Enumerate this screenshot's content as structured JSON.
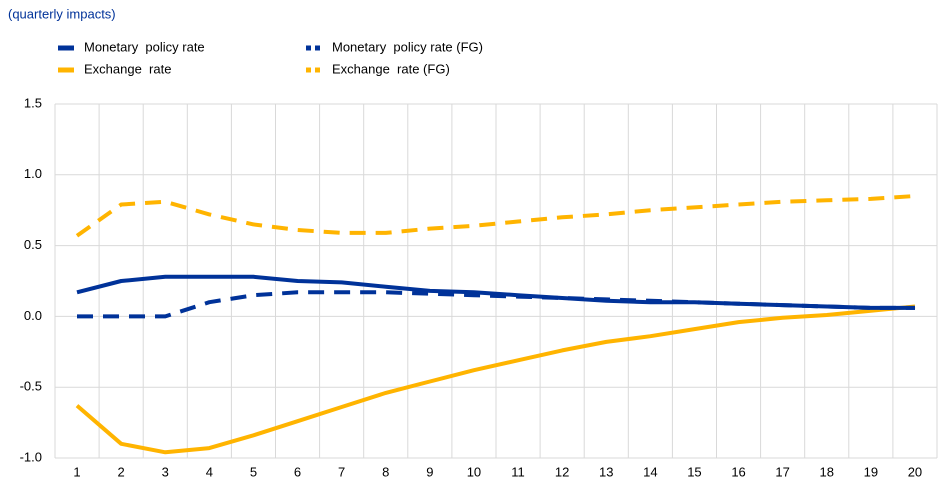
{
  "chart_data": {
    "type": "line",
    "subtitle": "(quarterly impacts)",
    "categories": [
      "1",
      "2",
      "3",
      "4",
      "5",
      "6",
      "7",
      "8",
      "9",
      "10",
      "11",
      "12",
      "13",
      "14",
      "15",
      "16",
      "17",
      "18",
      "19",
      "20"
    ],
    "series": [
      {
        "name": "Monetary  policy rate",
        "color": "#003299",
        "dashed": false,
        "values": [
          0.17,
          0.25,
          0.28,
          0.28,
          0.28,
          0.25,
          0.24,
          0.21,
          0.18,
          0.17,
          0.15,
          0.13,
          0.11,
          0.1,
          0.1,
          0.09,
          0.08,
          0.07,
          0.06,
          0.06
        ]
      },
      {
        "name": "Monetary  policy rate (FG)",
        "color": "#003299",
        "dashed": true,
        "values": [
          0,
          0,
          0,
          0.1,
          0.15,
          0.17,
          0.17,
          0.17,
          0.16,
          0.15,
          0.14,
          0.13,
          0.12,
          0.11,
          0.1,
          0.09,
          0.08,
          0.07,
          0.06,
          0.06
        ]
      },
      {
        "name": "Exchange  rate",
        "color": "#ffb400",
        "dashed": false,
        "values": [
          -0.63,
          -0.9,
          -0.96,
          -0.93,
          -0.84,
          -0.74,
          -0.64,
          -0.54,
          -0.46,
          -0.38,
          -0.31,
          -0.24,
          -0.18,
          -0.14,
          -0.09,
          -0.04,
          -0.01,
          0.01,
          0.04,
          0.07
        ]
      },
      {
        "name": "Exchange  rate (FG)",
        "color": "#ffb400",
        "dashed": true,
        "values": [
          0.57,
          0.79,
          0.81,
          0.72,
          0.65,
          0.61,
          0.59,
          0.59,
          0.62,
          0.64,
          0.67,
          0.7,
          0.72,
          0.75,
          0.77,
          0.79,
          0.81,
          0.82,
          0.83,
          0.85
        ]
      }
    ],
    "ylim": [
      -1.0,
      1.5
    ],
    "yticks": [
      {
        "value": -1.0,
        "label": "-1.0"
      },
      -0.5,
      {
        "value": 0.0,
        "label": "0.0"
      },
      0.5,
      {
        "value": 1.0,
        "label": "1.0"
      },
      1.5
    ],
    "grid": true
  }
}
